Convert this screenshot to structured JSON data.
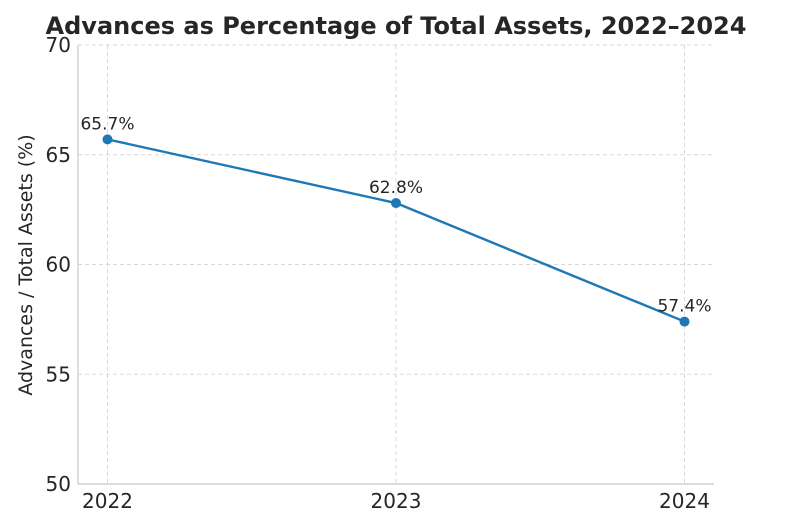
{
  "chart_data": {
    "type": "line",
    "title": "Advances as Percentage of Total Assets, 2022–2024",
    "xlabel": "",
    "ylabel": "Advances / Total Assets (%)",
    "categories": [
      "2022",
      "2023",
      "2024"
    ],
    "series": [
      {
        "values": [
          65.7,
          62.8,
          57.4
        ],
        "data_labels": [
          "65.7%",
          "62.8%",
          "57.4%"
        ],
        "color": "#1f77b4"
      }
    ],
    "ylim": [
      50,
      70
    ],
    "yticks": [
      "50",
      "55",
      "60",
      "65",
      "70"
    ],
    "grid": true,
    "legend": "none"
  }
}
